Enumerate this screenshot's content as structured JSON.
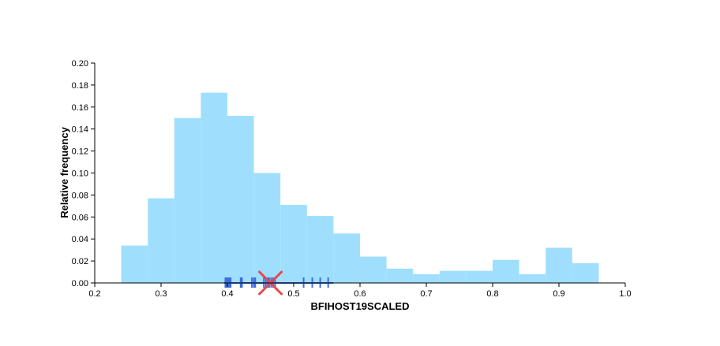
{
  "chart_data": {
    "type": "bar",
    "title": "",
    "xlabel": "BFIHOST19SCALED",
    "ylabel": "Relative frequency",
    "xlim": [
      0.2,
      1.0
    ],
    "ylim": [
      0,
      0.2
    ],
    "xticks": [
      "0.2",
      "0.3",
      "0.4",
      "0.5",
      "0.6",
      "0.7",
      "0.8",
      "0.9",
      "1.0"
    ],
    "yticks": [
      "0.00",
      "0.02",
      "0.04",
      "0.06",
      "0.08",
      "0.10",
      "0.12",
      "0.14",
      "0.16",
      "0.18",
      "0.20"
    ],
    "grid": false,
    "bar_color": "#9fdffd",
    "bins": [
      {
        "x0": 0.24,
        "x1": 0.28,
        "value": 0.034
      },
      {
        "x0": 0.28,
        "x1": 0.32,
        "value": 0.077
      },
      {
        "x0": 0.32,
        "x1": 0.36,
        "value": 0.15
      },
      {
        "x0": 0.36,
        "x1": 0.4,
        "value": 0.173
      },
      {
        "x0": 0.4,
        "x1": 0.44,
        "value": 0.152
      },
      {
        "x0": 0.44,
        "x1": 0.48,
        "value": 0.1
      },
      {
        "x0": 0.48,
        "x1": 0.52,
        "value": 0.071
      },
      {
        "x0": 0.52,
        "x1": 0.56,
        "value": 0.061
      },
      {
        "x0": 0.56,
        "x1": 0.6,
        "value": 0.045
      },
      {
        "x0": 0.6,
        "x1": 0.64,
        "value": 0.024
      },
      {
        "x0": 0.64,
        "x1": 0.68,
        "value": 0.013
      },
      {
        "x0": 0.68,
        "x1": 0.72,
        "value": 0.008
      },
      {
        "x0": 0.72,
        "x1": 0.76,
        "value": 0.011
      },
      {
        "x0": 0.76,
        "x1": 0.8,
        "value": 0.011
      },
      {
        "x0": 0.8,
        "x1": 0.84,
        "value": 0.021
      },
      {
        "x0": 0.84,
        "x1": 0.88,
        "value": 0.008
      },
      {
        "x0": 0.88,
        "x1": 0.92,
        "value": 0.032
      },
      {
        "x0": 0.92,
        "x1": 0.96,
        "value": 0.018
      }
    ],
    "rug": {
      "color": "#3b6fe0",
      "range": [
        0.395,
        0.56
      ],
      "x": [
        0.397,
        0.399,
        0.401,
        0.403,
        0.405,
        0.42,
        0.422,
        0.437,
        0.44,
        0.442,
        0.455,
        0.458,
        0.461,
        0.463,
        0.466,
        0.469,
        0.472,
        0.515,
        0.528,
        0.54,
        0.552
      ]
    },
    "target": {
      "x": 0.465,
      "y": 0.0,
      "marker": "cross",
      "color": "#e8474a"
    }
  }
}
